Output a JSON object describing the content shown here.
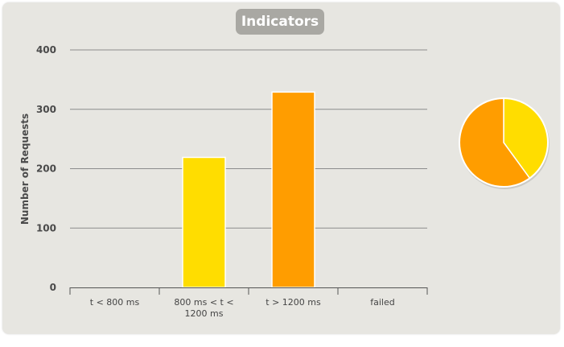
{
  "chart_data": {
    "type": "bar",
    "title": "Indicators",
    "ylabel": "Number of Requests",
    "xlabel": "",
    "categories": [
      "t < 800 ms",
      "800 ms < t < 1200 ms",
      "t > 1200 ms",
      "failed"
    ],
    "category_label_lines": [
      [
        "t < 800 ms"
      ],
      [
        "800 ms < t <",
        "1200 ms"
      ],
      [
        "t > 1200 ms"
      ],
      [
        "failed"
      ]
    ],
    "values": [
      0,
      219,
      329,
      0
    ],
    "bar_colors": [
      "#ffdd00",
      "#ffdd00",
      "#ff9d00",
      "#f15b4f"
    ],
    "ylim": [
      0,
      400
    ],
    "yticks": [
      0,
      100,
      200,
      300,
      400
    ],
    "grid": true,
    "legend": "none",
    "pie": {
      "slices": [
        {
          "category": "800 ms < t < 1200 ms",
          "value": 219,
          "color": "#ffdd00"
        },
        {
          "category": "t > 1200 ms",
          "value": 329,
          "color": "#ff9d00"
        }
      ]
    }
  }
}
